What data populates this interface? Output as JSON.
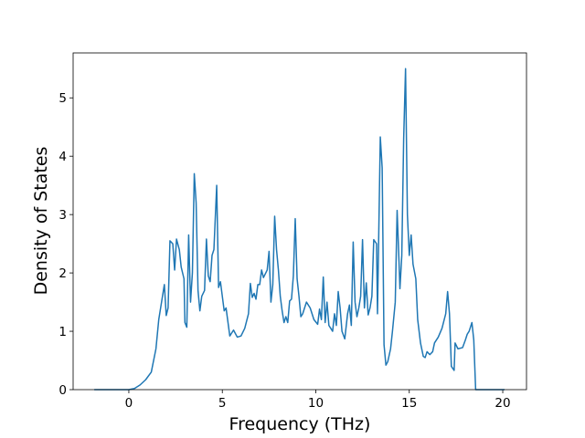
{
  "chart_data": {
    "type": "line",
    "x_label": "Frequency (THz)",
    "y_label": "Density of States",
    "x": [
      -1.85,
      0,
      0.3,
      0.6,
      0.9,
      1.2,
      1.45,
      1.6,
      1.8,
      1.9,
      2.0,
      2.1,
      2.2,
      2.35,
      2.45,
      2.55,
      2.7,
      2.8,
      2.95,
      3.0,
      3.1,
      3.2,
      3.3,
      3.4,
      3.5,
      3.6,
      3.7,
      3.8,
      3.9,
      4.05,
      4.15,
      4.25,
      4.35,
      4.45,
      4.55,
      4.7,
      4.8,
      4.9,
      5.0,
      5.1,
      5.2,
      5.4,
      5.6,
      5.8,
      6.0,
      6.2,
      6.4,
      6.5,
      6.6,
      6.7,
      6.8,
      6.9,
      7.0,
      7.1,
      7.2,
      7.4,
      7.5,
      7.6,
      7.7,
      7.8,
      7.9,
      8.0,
      8.1,
      8.2,
      8.3,
      8.4,
      8.5,
      8.6,
      8.7,
      8.8,
      8.9,
      9.0,
      9.1,
      9.2,
      9.3,
      9.5,
      9.7,
      9.9,
      10.1,
      10.2,
      10.3,
      10.4,
      10.5,
      10.6,
      10.7,
      10.9,
      11.0,
      11.1,
      11.2,
      11.3,
      11.4,
      11.55,
      11.7,
      11.8,
      11.9,
      12.0,
      12.1,
      12.2,
      12.3,
      12.4,
      12.5,
      12.6,
      12.7,
      12.8,
      12.9,
      13.0,
      13.1,
      13.25,
      13.3,
      13.45,
      13.55,
      13.65,
      13.75,
      13.85,
      14.0,
      14.1,
      14.25,
      14.35,
      14.45,
      14.5,
      14.6,
      14.7,
      14.8,
      14.9,
      15.0,
      15.1,
      15.2,
      15.35,
      15.45,
      15.6,
      15.75,
      15.85,
      15.95,
      16.1,
      16.25,
      16.35,
      16.55,
      16.75,
      16.95,
      17.05,
      17.15,
      17.25,
      17.4,
      17.45,
      17.6,
      17.85,
      18.0,
      18.1,
      18.2,
      18.35,
      18.45,
      18.55,
      20.1
    ],
    "series": [
      {
        "color": "#1f77b4",
        "values": [
          0,
          0,
          0.02,
          0.08,
          0.17,
          0.3,
          0.7,
          1.2,
          1.6,
          1.8,
          1.27,
          1.4,
          2.55,
          2.5,
          2.05,
          2.58,
          2.4,
          2.1,
          1.9,
          1.15,
          1.07,
          2.65,
          1.5,
          2.0,
          3.7,
          3.2,
          1.7,
          1.35,
          1.6,
          1.7,
          2.58,
          1.95,
          1.85,
          2.3,
          2.4,
          3.5,
          1.75,
          1.85,
          1.6,
          1.35,
          1.4,
          0.92,
          1.02,
          0.9,
          0.92,
          1.05,
          1.3,
          1.82,
          1.58,
          1.65,
          1.55,
          1.8,
          1.8,
          2.05,
          1.92,
          2.05,
          2.37,
          1.5,
          1.8,
          2.97,
          2.4,
          2.05,
          1.6,
          1.35,
          1.15,
          1.25,
          1.15,
          1.52,
          1.55,
          1.95,
          2.93,
          1.9,
          1.6,
          1.25,
          1.3,
          1.5,
          1.4,
          1.2,
          1.12,
          1.38,
          1.2,
          1.93,
          1.15,
          1.5,
          1.1,
          1.0,
          1.3,
          1.1,
          1.68,
          1.4,
          1.0,
          0.87,
          1.3,
          1.45,
          1.1,
          2.53,
          1.5,
          1.25,
          1.4,
          1.6,
          2.57,
          1.4,
          1.83,
          1.28,
          1.4,
          1.6,
          2.57,
          2.5,
          1.3,
          4.33,
          3.8,
          0.77,
          0.42,
          0.48,
          0.7,
          1.0,
          1.5,
          3.07,
          2.2,
          1.73,
          2.3,
          4.3,
          5.5,
          3.0,
          2.3,
          2.65,
          2.15,
          1.9,
          1.2,
          0.8,
          0.57,
          0.55,
          0.65,
          0.6,
          0.65,
          0.8,
          0.9,
          1.05,
          1.3,
          1.68,
          1.3,
          0.4,
          0.33,
          0.8,
          0.7,
          0.72,
          0.85,
          0.95,
          1.0,
          1.15,
          0.85,
          0,
          0
        ]
      }
    ],
    "xlim": [
      -2.98,
      21.27
    ],
    "ylim": [
      0,
      5.77
    ],
    "xticks": [
      0,
      5,
      10,
      15,
      20
    ],
    "yticks": [
      0,
      1,
      2,
      3,
      4,
      5
    ]
  }
}
